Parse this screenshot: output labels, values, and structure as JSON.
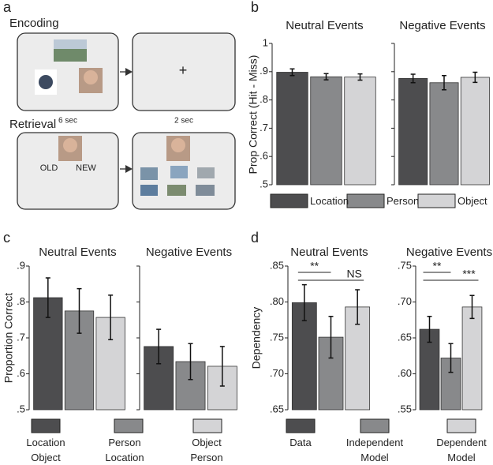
{
  "diagram": {
    "label": "a",
    "encoding_title": "Encoding",
    "encoding_duration": "6 sec",
    "fixation": "+",
    "fixation_duration": "2 sec",
    "retrieval_title": "Retrieval",
    "old": "OLD",
    "new": "NEW"
  },
  "chart_data": [
    {
      "type": "bar",
      "label": "b",
      "ylabel": "Prop Correct (Hit - Miss)",
      "ylim": [
        0.5,
        1
      ],
      "yticks": [
        {
          "value": 0.5,
          "label": ".5"
        },
        {
          "value": 0.6,
          "label": ".6"
        },
        {
          "value": 0.7,
          "label": ".7"
        },
        {
          "value": 0.8,
          "label": ".8"
        },
        {
          "value": 0.9,
          "label": ".9"
        },
        1
      ],
      "legend": [
        {
          "name": "Location",
          "color": "#4d4d4f"
        },
        {
          "name": "Person",
          "color": "#88898b"
        },
        {
          "name": "Object",
          "color": "#d4d4d6"
        }
      ],
      "subplots": [
        {
          "title": "Neutral Events",
          "values": [
            0.898,
            0.882,
            0.881
          ],
          "errors": [
            0.012,
            0.011,
            0.011
          ]
        },
        {
          "title": "Negative Events",
          "values": [
            0.876,
            0.861,
            0.88
          ],
          "errors": [
            0.015,
            0.025,
            0.018
          ]
        }
      ]
    },
    {
      "type": "bar",
      "label": "c",
      "ylabel": "Proportion Correct",
      "ylim": [
        0.5,
        0.9
      ],
      "yticks": [
        {
          "value": 0.5,
          "label": ".5"
        },
        {
          "value": 0.6,
          "label": ".6"
        },
        {
          "value": 0.7,
          "label": ".7"
        },
        {
          "value": 0.8,
          "label": ".8"
        },
        {
          "value": 0.9,
          "label": ".9"
        }
      ],
      "legend": [
        {
          "name": "Location\nObject",
          "color": "#4d4d4f"
        },
        {
          "name": "Person\nLocation",
          "color": "#88898b"
        },
        {
          "name": "Object\nPerson",
          "color": "#d4d4d6"
        }
      ],
      "subplots": [
        {
          "title": "Neutral Events",
          "values": [
            0.812,
            0.775,
            0.757
          ],
          "errors": [
            0.055,
            0.062,
            0.062
          ]
        },
        {
          "title": "Negative Events",
          "values": [
            0.676,
            0.634,
            0.621
          ],
          "errors": [
            0.048,
            0.05,
            0.055
          ]
        }
      ]
    },
    {
      "type": "bar",
      "label": "d",
      "ylabel": "Dependency",
      "legend": [
        {
          "name": "Data",
          "color": "#4d4d4f"
        },
        {
          "name": "Independent\nModel",
          "color": "#88898b"
        },
        {
          "name": "Dependent\nModel",
          "color": "#d4d4d6"
        }
      ],
      "subplots": [
        {
          "title": "Neutral Events",
          "ylim": [
            0.65,
            0.85
          ],
          "yticks": [
            {
              "value": 0.65,
              "label": ".65"
            },
            {
              "value": 0.7,
              "label": ".70"
            },
            {
              "value": 0.75,
              "label": ".75"
            },
            {
              "value": 0.8,
              "label": ".80"
            },
            {
              "value": 0.85,
              "label": ".85"
            }
          ],
          "values": [
            0.799,
            0.751,
            0.793
          ],
          "errors": [
            0.025,
            0.029,
            0.024
          ],
          "annotations": [
            "**",
            "NS"
          ]
        },
        {
          "title": "Negative Events",
          "ylim": [
            0.55,
            0.75
          ],
          "yticks": [
            {
              "value": 0.55,
              "label": ".55"
            },
            {
              "value": 0.6,
              "label": ".60"
            },
            {
              "value": 0.65,
              "label": ".65"
            },
            {
              "value": 0.7,
              "label": ".70"
            },
            {
              "value": 0.75,
              "label": ".75"
            }
          ],
          "values": [
            0.662,
            0.622,
            0.693
          ],
          "errors": [
            0.018,
            0.02,
            0.016
          ],
          "annotations": [
            "**",
            "***"
          ]
        }
      ]
    }
  ]
}
